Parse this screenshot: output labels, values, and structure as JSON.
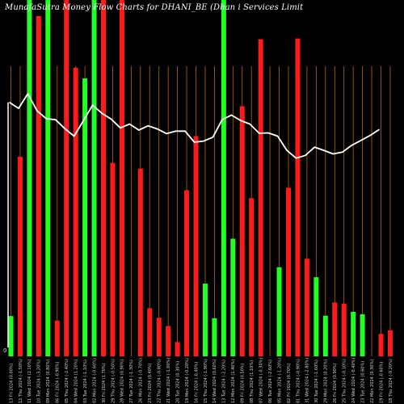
{
  "chart_data": {
    "type": "bar",
    "title": "MunafaSutra  Money Flow  Charts for DHANI_BE                    (Dhan                    i  Services  Limit",
    "y_zero_label": "0",
    "y_scale": [
      0,
      1000
    ],
    "ylim": [
      0,
      1000
    ],
    "colors": {
      "background": "#000000",
      "positive": "#22ff22",
      "negative": "#ff1a1a",
      "grid": "#b8650a",
      "line": "#ffffff",
      "text": "#ffffff"
    },
    "categories": [
      "13 Fri 2024 (0.00%)",
      "12 Thu 2024 (-1.50%)",
      "11 Wed 2024 (2.10%)",
      "10 Tue 2024 (-3.20%)",
      "09 Mon 2024 (0.80%)",
      "06 Fri 2024 (-0.90%)",
      "05 Thu 2024 (-2.40%)",
      "04 Wed 2024 (1.20%)",
      "03 Tue 2024 (-1.10%)",
      "02 Mon 2024 (-0.60%)",
      "30 Fri 2024 (1.70%)",
      "29 Thu 2024 (-0.50%)",
      "28 Wed 2024 (0.90%)",
      "27 Tue 2024 (-1.30%)",
      "26 Mon 2024 (-0.70%)",
      "23 Fri 2024 (0.40%)",
      "22 Thu 2024 (-0.80%)",
      "21 Wed 2024 (-1.00%)",
      "20 Tue 2024 (0.30%)",
      "19 Mon 2024 (-0.20%)",
      "16 Fri 2024 (-0.40%)",
      "15 Thu 2024 (-1.90%)",
      "14 Wed 2024 (0.60%)",
      "13 Tue 2024 (-2.20%)",
      "12 Mon 2024 (1.40%)",
      "09 Fri 2024 (0.50%)",
      "08 Thu 2024 (1.10%)",
      "07 Wed 2024 (-0.30%)",
      "06 Tue 2024 (-2.60%)",
      "05 Mon 2024 (-1.20%)",
      "02 Fri 2024 (0.70%)",
      "01 Thu 2024 (-0.90%)",
      "31 Wed 2024 (-2.80%)",
      "30 Tue 2024 (-1.60%)",
      "29 Mon 2024 (0.20%)",
      "26 Fri 2024 (0.90%)",
      "25 Thu 2024 (-0.10%)",
      "24 Wed 2024 (-0.40%)",
      "23 Tue 2024 (0.60%)",
      "22 Mon 2024 (0.30%)",
      "19 Fri 2024 (-0.60%)",
      "18 Thu 2024 (-0.20%)"
    ],
    "series": [
      {
        "type": "bar",
        "values": [
          {
            "v": 113,
            "c": "green"
          },
          {
            "v": 560,
            "c": "red"
          },
          {
            "v": 1000,
            "c": "green"
          },
          {
            "v": 955,
            "c": "red"
          },
          {
            "v": 1000,
            "c": "green"
          },
          {
            "v": 100,
            "c": "red"
          },
          {
            "v": 1000,
            "c": "red"
          },
          {
            "v": 810,
            "c": "red"
          },
          {
            "v": 780,
            "c": "green"
          },
          {
            "v": 1000,
            "c": "green"
          },
          {
            "v": 1000,
            "c": "red"
          },
          {
            "v": 543,
            "c": "red"
          },
          {
            "v": 1000,
            "c": "red"
          },
          {
            "v": 0,
            "c": "green"
          },
          {
            "v": 527,
            "c": "red"
          },
          {
            "v": 135,
            "c": "red"
          },
          {
            "v": 108,
            "c": "red"
          },
          {
            "v": 85,
            "c": "red"
          },
          {
            "v": 40,
            "c": "red"
          },
          {
            "v": 466,
            "c": "red"
          },
          {
            "v": 618,
            "c": "red"
          },
          {
            "v": 204,
            "c": "green"
          },
          {
            "v": 107,
            "c": "green"
          },
          {
            "v": 1000,
            "c": "green"
          },
          {
            "v": 330,
            "c": "green"
          },
          {
            "v": 702,
            "c": "red"
          },
          {
            "v": 444,
            "c": "red"
          },
          {
            "v": 890,
            "c": "red"
          },
          {
            "v": 0,
            "c": "red"
          },
          {
            "v": 250,
            "c": "green"
          },
          {
            "v": 473,
            "c": "red"
          },
          {
            "v": 892,
            "c": "red"
          },
          {
            "v": 274,
            "c": "red"
          },
          {
            "v": 222,
            "c": "green"
          },
          {
            "v": 114,
            "c": "green"
          },
          {
            "v": 151,
            "c": "red"
          },
          {
            "v": 148,
            "c": "red"
          },
          {
            "v": 125,
            "c": "green"
          },
          {
            "v": 118,
            "c": "green"
          },
          {
            "v": 0,
            "c": "green"
          },
          {
            "v": 63,
            "c": "red"
          },
          {
            "v": 73,
            "c": "red"
          }
        ]
      },
      {
        "type": "line",
        "values": [
          713,
          696,
          737,
          689,
          667,
          664,
          639,
          618,
          661,
          705,
          682,
          666,
          641,
          652,
          635,
          647,
          638,
          625,
          632,
          632,
          601,
          604,
          615,
          664,
          677,
          662,
          652,
          626,
          627,
          618,
          578,
          556,
          564,
          587,
          578,
          568,
          573,
          592,
          606,
          620,
          637,
          0
        ]
      }
    ]
  }
}
